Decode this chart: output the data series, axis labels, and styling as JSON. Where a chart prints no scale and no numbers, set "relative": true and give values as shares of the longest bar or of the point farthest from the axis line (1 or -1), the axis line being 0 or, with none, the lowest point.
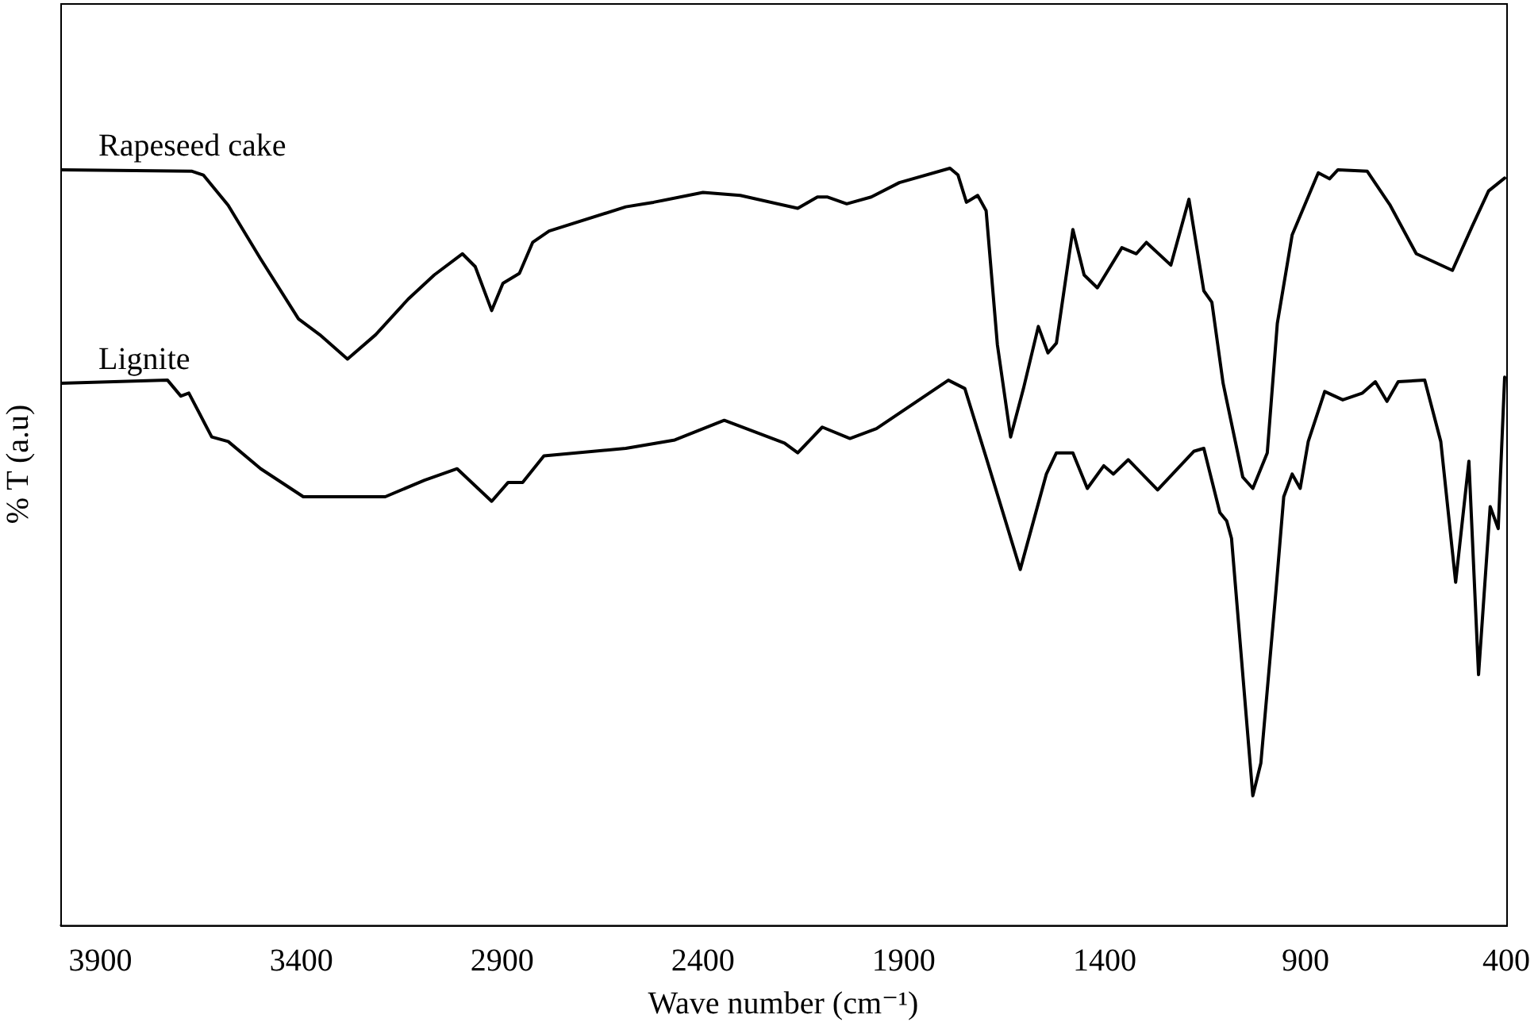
{
  "chart_data": {
    "type": "line",
    "relative": true,
    "xlabel": "Wave number (cm⁻¹)",
    "ylabel": "% T (a.u)",
    "xlim": [
      4000,
      400
    ],
    "xticks": [
      3900,
      3400,
      2900,
      2400,
      1900,
      1400,
      900,
      400
    ],
    "marker": "none",
    "series": [
      {
        "name": "Rapeseed cake",
        "color": "#000000",
        "x": [
          4000,
          3672,
          3644,
          3582,
          3501,
          3407,
          3354,
          3285,
          3215,
          3134,
          3069,
          2999,
          2967,
          2926,
          2898,
          2857,
          2824,
          2783,
          2592,
          2523,
          2400,
          2307,
          2164,
          2115,
          2091,
          2042,
          1981,
          1911,
          1785,
          1765,
          1744,
          1716,
          1695,
          1667,
          1634,
          1602,
          1565,
          1541,
          1520,
          1479,
          1451,
          1418,
          1357,
          1321,
          1296,
          1235,
          1190,
          1153,
          1133,
          1105,
          1056,
          1031,
          995,
          970,
          933,
          868,
          840,
          819,
          746,
          689,
          624,
          534,
          485,
          444,
          404
        ],
        "values": [
          0.998,
          0.996,
          0.991,
          0.951,
          0.88,
          0.801,
          0.78,
          0.748,
          0.78,
          0.827,
          0.859,
          0.887,
          0.87,
          0.812,
          0.848,
          0.861,
          0.902,
          0.917,
          0.949,
          0.955,
          0.968,
          0.964,
          0.947,
          0.962,
          0.962,
          0.953,
          0.962,
          0.981,
          1.0,
          0.991,
          0.955,
          0.964,
          0.944,
          0.767,
          0.645,
          0.709,
          0.791,
          0.756,
          0.769,
          0.919,
          0.859,
          0.842,
          0.895,
          0.887,
          0.902,
          0.872,
          0.959,
          0.838,
          0.823,
          0.716,
          0.592,
          0.577,
          0.624,
          0.795,
          0.912,
          0.994,
          0.986,
          0.998,
          0.996,
          0.951,
          0.887,
          0.865,
          0.923,
          0.97,
          0.987
        ]
      },
      {
        "name": "Lignite",
        "color": "#000000",
        "x": [
          4000,
          3733,
          3700,
          3680,
          3623,
          3582,
          3501,
          3395,
          3191,
          3093,
          3012,
          2926,
          2885,
          2849,
          2796,
          2592,
          2470,
          2347,
          2197,
          2164,
          2103,
          2034,
          1968,
          1789,
          1748,
          1695,
          1610,
          1545,
          1520,
          1479,
          1443,
          1402,
          1378,
          1341,
          1268,
          1178,
          1153,
          1113,
          1096,
          1084,
          1031,
          1011,
          974,
          954,
          933,
          913,
          893,
          852,
          807,
          758,
          726,
          697,
          669,
          603,
          563,
          526,
          493,
          469,
          440,
          420,
          404
        ],
        "values": [
          0.716,
          0.72,
          0.699,
          0.703,
          0.645,
          0.639,
          0.603,
          0.566,
          0.566,
          0.588,
          0.603,
          0.56,
          0.585,
          0.585,
          0.62,
          0.63,
          0.641,
          0.667,
          0.637,
          0.624,
          0.658,
          0.643,
          0.656,
          0.72,
          0.709,
          0.618,
          0.47,
          0.596,
          0.624,
          0.624,
          0.577,
          0.607,
          0.596,
          0.615,
          0.575,
          0.626,
          0.63,
          0.545,
          0.534,
          0.511,
          0.171,
          0.214,
          0.438,
          0.566,
          0.596,
          0.577,
          0.639,
          0.705,
          0.694,
          0.703,
          0.718,
          0.692,
          0.718,
          0.72,
          0.639,
          0.453,
          0.613,
          0.331,
          0.553,
          0.524,
          0.724
        ]
      }
    ]
  }
}
